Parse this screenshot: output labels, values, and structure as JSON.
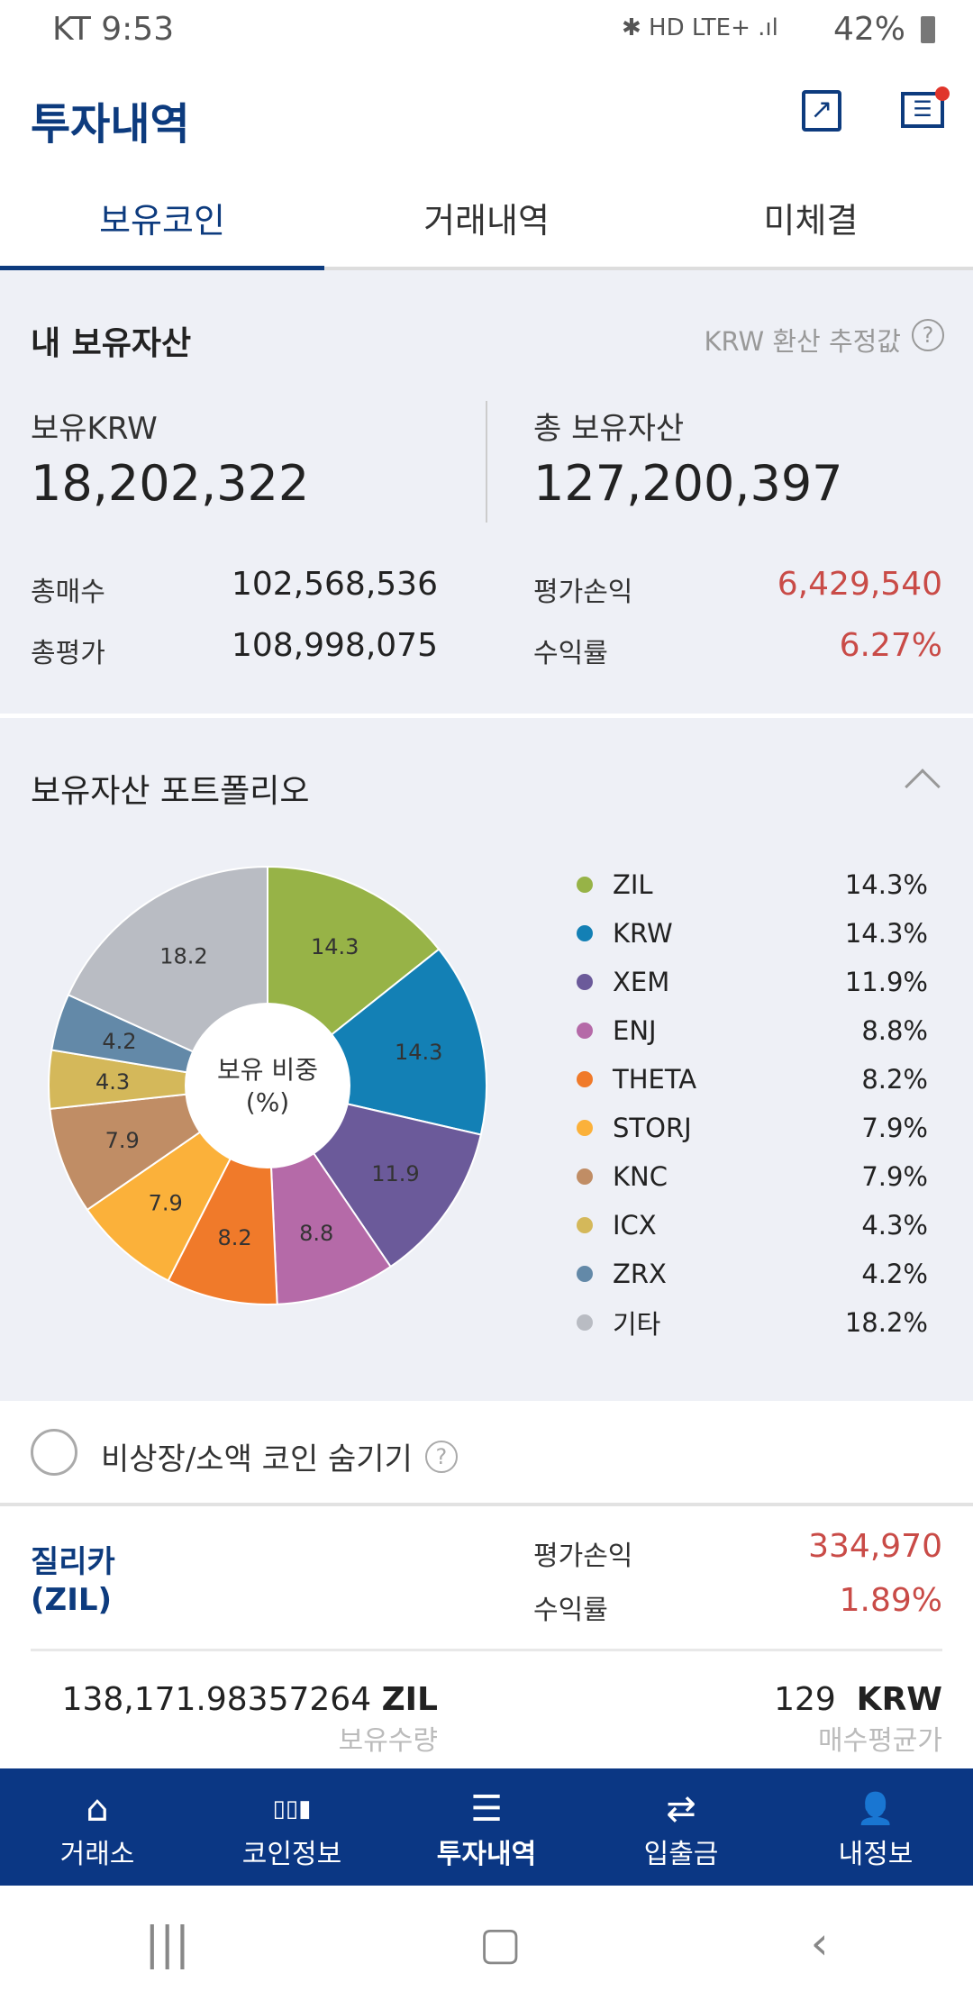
{
  "status_bar": {
    "carrier": "KT",
    "time": "9:53",
    "battery": "42%",
    "network": "LTE+"
  },
  "header": {
    "title": "투자내역",
    "icons": [
      "share-icon",
      "message-icon"
    ]
  },
  "tabs": [
    {
      "label": "보유코인",
      "active": true
    },
    {
      "label": "거래내역"
    },
    {
      "label": "미체결"
    }
  ],
  "assets": {
    "title": "내 보유자산",
    "note": "KRW 환산 추정값",
    "krw_label": "보유KRW",
    "krw_value": "18,202,322",
    "total_label": "총 보유자산",
    "total_value": "127,200,397",
    "buy_label": "총매수",
    "buy_value": "102,568,536",
    "eval_label": "총평가",
    "eval_value": "108,998,075",
    "pl_label": "평가손익",
    "pl_value": "6,429,540",
    "rate_label": "수익률",
    "rate_value": "6.27%"
  },
  "portfolio": {
    "title": "보유자산 포트폴리오",
    "center_label_1": "보유 비중",
    "center_label_2": "(%)"
  },
  "chart_data": {
    "type": "pie",
    "donut": true,
    "categories": [
      "ZIL",
      "KRW",
      "XEM",
      "ENJ",
      "THETA",
      "STORJ",
      "KNC",
      "ICX",
      "ZRX",
      "기타"
    ],
    "values": [
      14.3,
      14.3,
      11.9,
      8.8,
      8.2,
      7.9,
      7.9,
      4.3,
      4.2,
      18.2
    ],
    "legend_labels": [
      "14.3%",
      "14.3%",
      "11.9%",
      "8.8%",
      "8.2%",
      "7.9%",
      "7.9%",
      "4.3%",
      "4.2%",
      "18.2%"
    ],
    "colors": [
      "#97b347",
      "#1380b5",
      "#6b5a9a",
      "#b56aa8",
      "#f07a2a",
      "#fbb13a",
      "#c08d65",
      "#d4b85a",
      "#6389a8",
      "#b9bcc3"
    ],
    "legend": "right"
  },
  "hide_option": {
    "label": "비상장/소액 코인 숨기기",
    "checked": false
  },
  "coin": {
    "name": "질리카",
    "symbol": "(ZIL)",
    "pl_label": "평가손익",
    "pl_value": "334,970",
    "rate_label": "수익률",
    "rate_value": "1.89%",
    "amount": "138,171.98357264",
    "amount_unit": "ZIL",
    "amount_label": "보유수량",
    "avg_price": "129",
    "avg_unit": "KRW",
    "avg_label": "매수평균가"
  },
  "bottom_nav": [
    {
      "label": "거래소",
      "icon": "⌂"
    },
    {
      "label": "코인정보",
      "icon": "▯▯▮"
    },
    {
      "label": "투자내역",
      "icon": "☰",
      "active": true
    },
    {
      "label": "입출금",
      "icon": "⇄"
    },
    {
      "label": "내정보",
      "icon": "👤"
    }
  ],
  "colors": {
    "brand": "#0b3784",
    "profit": "#c94b47"
  }
}
